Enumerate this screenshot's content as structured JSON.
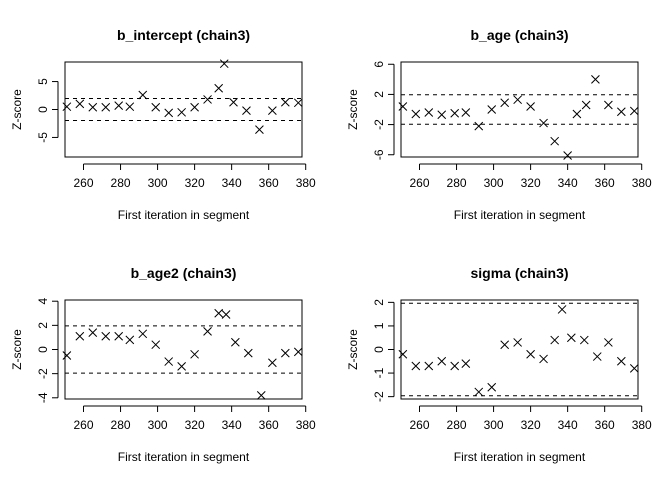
{
  "chart_data": [
    {
      "type": "scatter",
      "title": "b_intercept (chain3)",
      "xlabel": "First iteration in segment",
      "ylabel": "Z-score",
      "xlim": [
        250,
        378
      ],
      "ylim": [
        -8.5,
        8.5
      ],
      "xticks": [
        260,
        280,
        300,
        320,
        340,
        360,
        380
      ],
      "yticks": [
        -5,
        0,
        5
      ],
      "reference_lines": [
        1.96,
        -1.96
      ],
      "marker": "x",
      "x": [
        251,
        258,
        265,
        272,
        279,
        285,
        292,
        299,
        306,
        313,
        320,
        327,
        333,
        336,
        341,
        348,
        355,
        362,
        369,
        376
      ],
      "y": [
        0.5,
        1.0,
        0.4,
        0.4,
        0.7,
        0.5,
        2.6,
        0.4,
        -0.6,
        -0.5,
        0.4,
        1.8,
        3.8,
        8.2,
        1.3,
        -0.2,
        -3.6,
        -0.2,
        1.3,
        1.2
      ]
    },
    {
      "type": "scatter",
      "title": "b_age (chain3)",
      "xlabel": "First iteration in segment",
      "ylabel": "Z-score",
      "xlim": [
        250,
        378
      ],
      "ylim": [
        -6.3,
        6.3
      ],
      "xticks": [
        260,
        280,
        300,
        320,
        340,
        360,
        380
      ],
      "yticks": [
        -6,
        -2,
        2,
        6
      ],
      "reference_lines": [
        1.96,
        -1.96
      ],
      "marker": "x",
      "x": [
        251,
        258,
        265,
        272,
        279,
        285,
        292,
        299,
        306,
        313,
        320,
        327,
        333,
        340,
        345,
        350,
        355,
        362,
        369,
        376
      ],
      "y": [
        0.4,
        -0.6,
        -0.4,
        -0.7,
        -0.5,
        -0.4,
        -2.2,
        0.0,
        0.9,
        1.3,
        0.4,
        -1.8,
        -4.2,
        -6.1,
        -0.6,
        0.6,
        4.0,
        0.6,
        -0.3,
        -0.2
      ]
    },
    {
      "type": "scatter",
      "title": "b_age2 (chain3)",
      "xlabel": "First iteration in segment",
      "ylabel": "Z-score",
      "xlim": [
        250,
        378
      ],
      "ylim": [
        -4.1,
        4.1
      ],
      "xticks": [
        260,
        280,
        300,
        320,
        340,
        360,
        380
      ],
      "yticks": [
        -4,
        -2,
        0,
        2,
        4
      ],
      "reference_lines": [
        1.96,
        -1.96
      ],
      "marker": "x",
      "x": [
        251,
        258,
        265,
        272,
        279,
        285,
        292,
        299,
        306,
        313,
        320,
        327,
        333,
        337,
        342,
        349,
        356,
        362,
        369,
        376
      ],
      "y": [
        -0.5,
        1.1,
        1.4,
        1.1,
        1.1,
        0.8,
        1.3,
        0.4,
        -1.0,
        -1.4,
        -0.4,
        1.5,
        3.0,
        2.9,
        0.6,
        -0.3,
        -3.8,
        -1.1,
        -0.3,
        -0.2
      ]
    },
    {
      "type": "scatter",
      "title": "sigma (chain3)",
      "xlabel": "First iteration in segment",
      "ylabel": "Z-score",
      "xlim": [
        250,
        378
      ],
      "ylim": [
        -2.1,
        2.1
      ],
      "xticks": [
        260,
        280,
        300,
        320,
        340,
        360,
        380
      ],
      "yticks": [
        -2,
        -1,
        0,
        1,
        2
      ],
      "reference_lines": [
        1.96,
        -1.96
      ],
      "marker": "x",
      "x": [
        251,
        258,
        265,
        272,
        279,
        285,
        292,
        299,
        306,
        313,
        320,
        327,
        333,
        337,
        342,
        349,
        356,
        362,
        369,
        376
      ],
      "y": [
        -0.2,
        -0.7,
        -0.7,
        -0.5,
        -0.7,
        -0.6,
        -1.8,
        -1.6,
        0.2,
        0.3,
        -0.2,
        -0.4,
        0.4,
        1.7,
        0.5,
        0.4,
        -0.3,
        0.3,
        -0.5,
        -0.8
      ]
    }
  ]
}
